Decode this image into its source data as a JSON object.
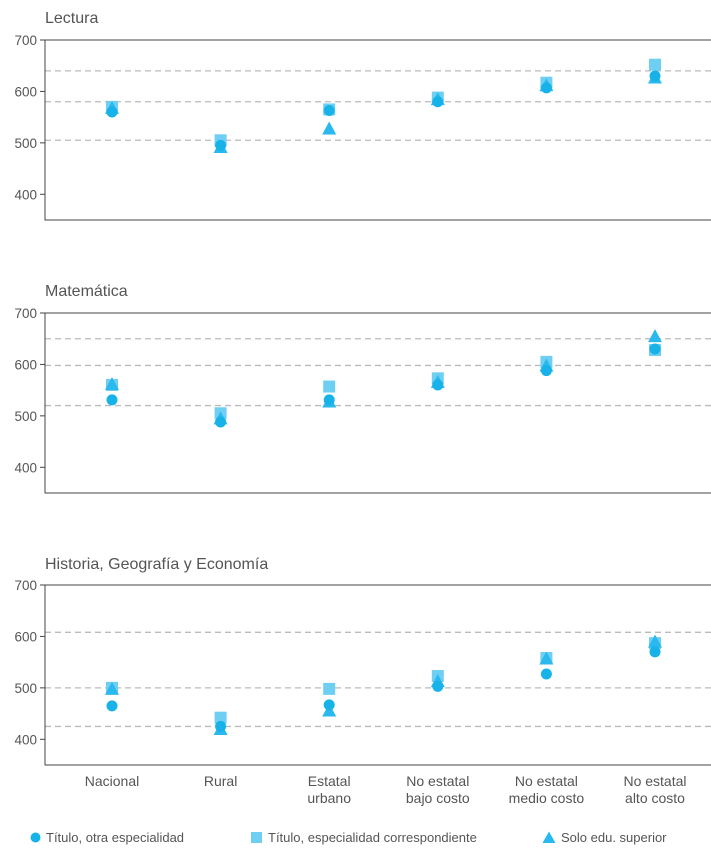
{
  "colors": {
    "circle": "#17b3e8",
    "square": "#6fcff3",
    "triangle": "#29b9ee",
    "axis": "#444444",
    "reference_line": "#bbbbbb",
    "text": "#555555"
  },
  "icons": {
    "circle": "filled-circle-marker",
    "square": "filled-square-marker",
    "triangle": "filled-triangle-marker"
  },
  "chart_data": [
    {
      "type": "scatter",
      "title": "Lectura",
      "categories": [
        "Nacional",
        "Rural",
        "Estatal urbano",
        "No estatal bajo costo",
        "No estatal medio costo",
        "No estatal alto costo"
      ],
      "ylim": [
        350,
        700
      ],
      "yticks": [
        400,
        500,
        600,
        700
      ],
      "reference_lines": [
        505,
        580,
        640
      ],
      "grid": false,
      "series": [
        {
          "name": "Título, otra especialidad",
          "marker": "circle",
          "values": [
            560,
            495,
            563,
            580,
            607,
            630
          ]
        },
        {
          "name": "Título, especialidad correspondiente",
          "marker": "square",
          "values": [
            570,
            505,
            565,
            588,
            617,
            652
          ]
        },
        {
          "name": "Solo edu. superior",
          "marker": "triangle",
          "values": [
            568,
            492,
            528,
            585,
            612,
            627
          ]
        }
      ]
    },
    {
      "type": "scatter",
      "title": "Matemática",
      "categories": [
        "Nacional",
        "Rural",
        "Estatal urbano",
        "No estatal bajo costo",
        "No estatal medio costo",
        "No estatal alto costo"
      ],
      "ylim": [
        350,
        700
      ],
      "yticks": [
        400,
        500,
        600,
        700
      ],
      "reference_lines": [
        520,
        598,
        650
      ],
      "grid": false,
      "series": [
        {
          "name": "Título, otra especialidad",
          "marker": "circle",
          "values": [
            531,
            488,
            531,
            560,
            588,
            630
          ]
        },
        {
          "name": "Título, especialidad correspondiente",
          "marker": "square",
          "values": [
            560,
            505,
            557,
            573,
            605,
            628
          ]
        },
        {
          "name": "Solo edu. superior",
          "marker": "triangle",
          "values": [
            562,
            495,
            528,
            566,
            598,
            655
          ]
        }
      ]
    },
    {
      "type": "scatter",
      "title": "Historia, Geografía y Economía",
      "categories": [
        "Nacional",
        "Rural",
        "Estatal urbano",
        "No estatal bajo costo",
        "No estatal medio costo",
        "No estatal alto costo"
      ],
      "ylim": [
        350,
        700
      ],
      "yticks": [
        400,
        500,
        600,
        700
      ],
      "reference_lines": [
        425,
        500,
        608
      ],
      "grid": false,
      "series": [
        {
          "name": "Título, otra especialidad",
          "marker": "circle",
          "values": [
            465,
            425,
            467,
            503,
            527,
            570
          ]
        },
        {
          "name": "Título, especialidad correspondiente",
          "marker": "square",
          "values": [
            500,
            442,
            498,
            523,
            558,
            587
          ]
        },
        {
          "name": "Solo edu. superior",
          "marker": "triangle",
          "values": [
            498,
            420,
            456,
            513,
            557,
            590
          ]
        }
      ]
    }
  ],
  "x_tick_labels": [
    [
      "Nacional"
    ],
    [
      "Rural"
    ],
    [
      "Estatal",
      "urbano"
    ],
    [
      "No estatal",
      "bajo costo"
    ],
    [
      "No estatal",
      "medio costo"
    ],
    [
      "No estatal",
      "alto costo"
    ]
  ],
  "legend": [
    {
      "label": "Título, otra especialidad",
      "marker": "circle"
    },
    {
      "label": "Título, especialidad correspondiente",
      "marker": "square"
    },
    {
      "label": "Solo edu. superior",
      "marker": "triangle"
    }
  ]
}
